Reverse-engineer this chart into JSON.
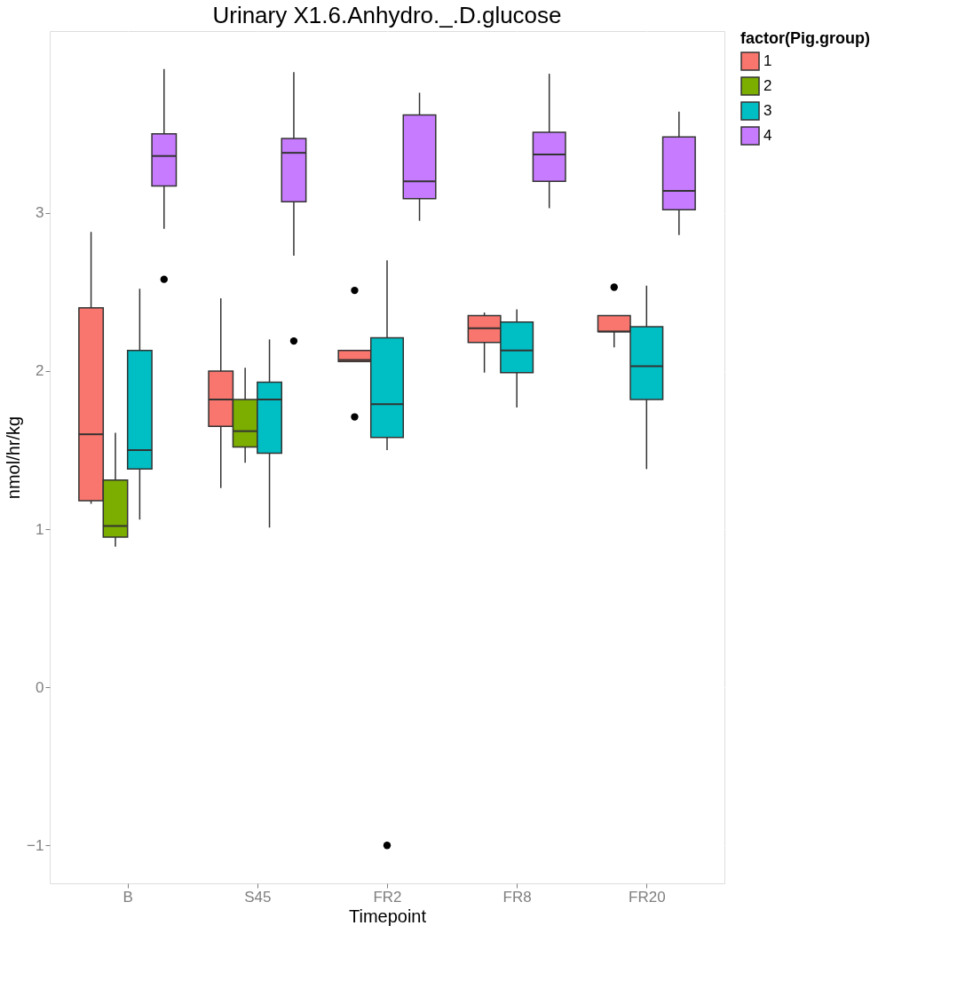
{
  "chart_data": {
    "type": "box",
    "title": "Urinary X1.6.Anhydro._.D.glucose",
    "xlabel": "Timepoint",
    "ylabel": "nmol/hr/kg",
    "legend_title": "factor(Pig.group)",
    "categories": [
      "B",
      "S45",
      "FR2",
      "FR8",
      "FR20"
    ],
    "series": [
      {
        "name": "1",
        "color": "#f8766d",
        "boxes": [
          {
            "low": 1.16,
            "q1": 1.18,
            "median": 1.6,
            "q3": 2.4,
            "high": 2.88
          },
          {
            "low": 1.26,
            "q1": 1.65,
            "median": 1.82,
            "q3": 2.0,
            "high": 2.46
          },
          {
            "low": 2.06,
            "q1": 2.06,
            "median": 2.07,
            "q3": 2.13,
            "high": 2.13,
            "outliers": [
              2.51,
              1.71
            ]
          },
          {
            "low": 1.99,
            "q1": 2.18,
            "median": 2.27,
            "q3": 2.35,
            "high": 2.37
          },
          {
            "low": 2.15,
            "q1": 2.25,
            "median": 2.25,
            "q3": 2.35,
            "high": 2.35,
            "outliers": [
              2.53
            ]
          }
        ]
      },
      {
        "name": "2",
        "color": "#7cae00",
        "boxes": [
          {
            "low": 0.89,
            "q1": 0.95,
            "median": 1.02,
            "q3": 1.31,
            "high": 1.61
          },
          {
            "low": 1.42,
            "q1": 1.52,
            "median": 1.62,
            "q3": 1.82,
            "high": 2.02
          },
          null,
          null,
          null
        ]
      },
      {
        "name": "3",
        "color": "#00bfc4",
        "boxes": [
          {
            "low": 1.06,
            "q1": 1.38,
            "median": 1.5,
            "q3": 2.13,
            "high": 2.52
          },
          {
            "low": 1.01,
            "q1": 1.48,
            "median": 1.82,
            "q3": 1.93,
            "high": 2.2
          },
          {
            "low": 1.5,
            "q1": 1.58,
            "median": 1.79,
            "q3": 2.21,
            "high": 2.7,
            "outliers": [
              -1.0
            ]
          },
          {
            "low": 1.77,
            "q1": 1.99,
            "median": 2.13,
            "q3": 2.31,
            "high": 2.39
          },
          {
            "low": 1.38,
            "q1": 1.82,
            "median": 2.03,
            "q3": 2.28,
            "high": 2.54
          }
        ]
      },
      {
        "name": "4",
        "color": "#c77cff",
        "boxes": [
          {
            "low": 2.9,
            "q1": 3.17,
            "median": 3.36,
            "q3": 3.5,
            "high": 3.91,
            "outliers": [
              2.58
            ]
          },
          {
            "low": 2.73,
            "q1": 3.07,
            "median": 3.38,
            "q3": 3.47,
            "high": 3.89,
            "outliers": [
              2.19
            ]
          },
          {
            "low": 2.95,
            "q1": 3.09,
            "median": 3.2,
            "q3": 3.62,
            "high": 3.76
          },
          {
            "low": 3.03,
            "q1": 3.2,
            "median": 3.37,
            "q3": 3.51,
            "high": 3.88
          },
          {
            "low": 2.86,
            "q1": 3.02,
            "median": 3.14,
            "q3": 3.48,
            "high": 3.64
          }
        ]
      }
    ],
    "ylim": [
      -1.24,
      4.15
    ],
    "yticks": [
      -1,
      0,
      1,
      2,
      3
    ],
    "grid": true,
    "legend": "right"
  }
}
